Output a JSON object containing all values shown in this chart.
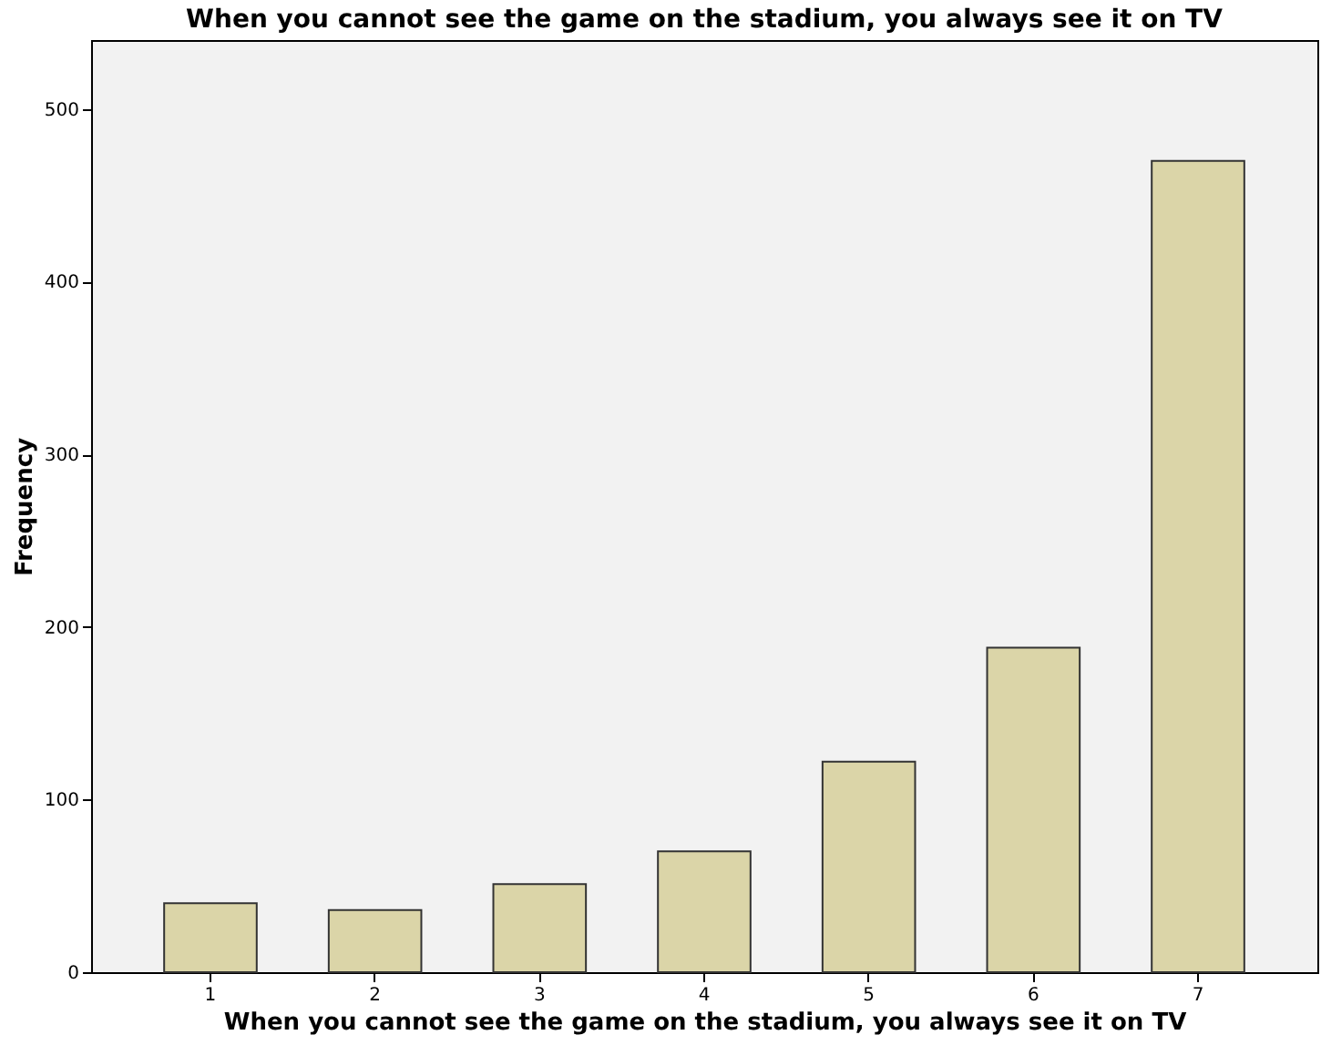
{
  "chart_data": {
    "type": "bar",
    "title": "When you cannot see the game on the stadium, you always see it on TV",
    "xlabel": "When you cannot see the game on the stadium, you always see it on TV",
    "ylabel": "Frequency",
    "categories": [
      "1",
      "2",
      "3",
      "4",
      "5",
      "6",
      "7"
    ],
    "values": [
      40,
      36,
      51,
      70,
      122,
      188,
      470
    ],
    "color": "#dbd5a8",
    "ylim": [
      0,
      540
    ],
    "yticks": [
      0,
      100,
      200,
      300,
      400,
      500
    ],
    "grid": false
  }
}
